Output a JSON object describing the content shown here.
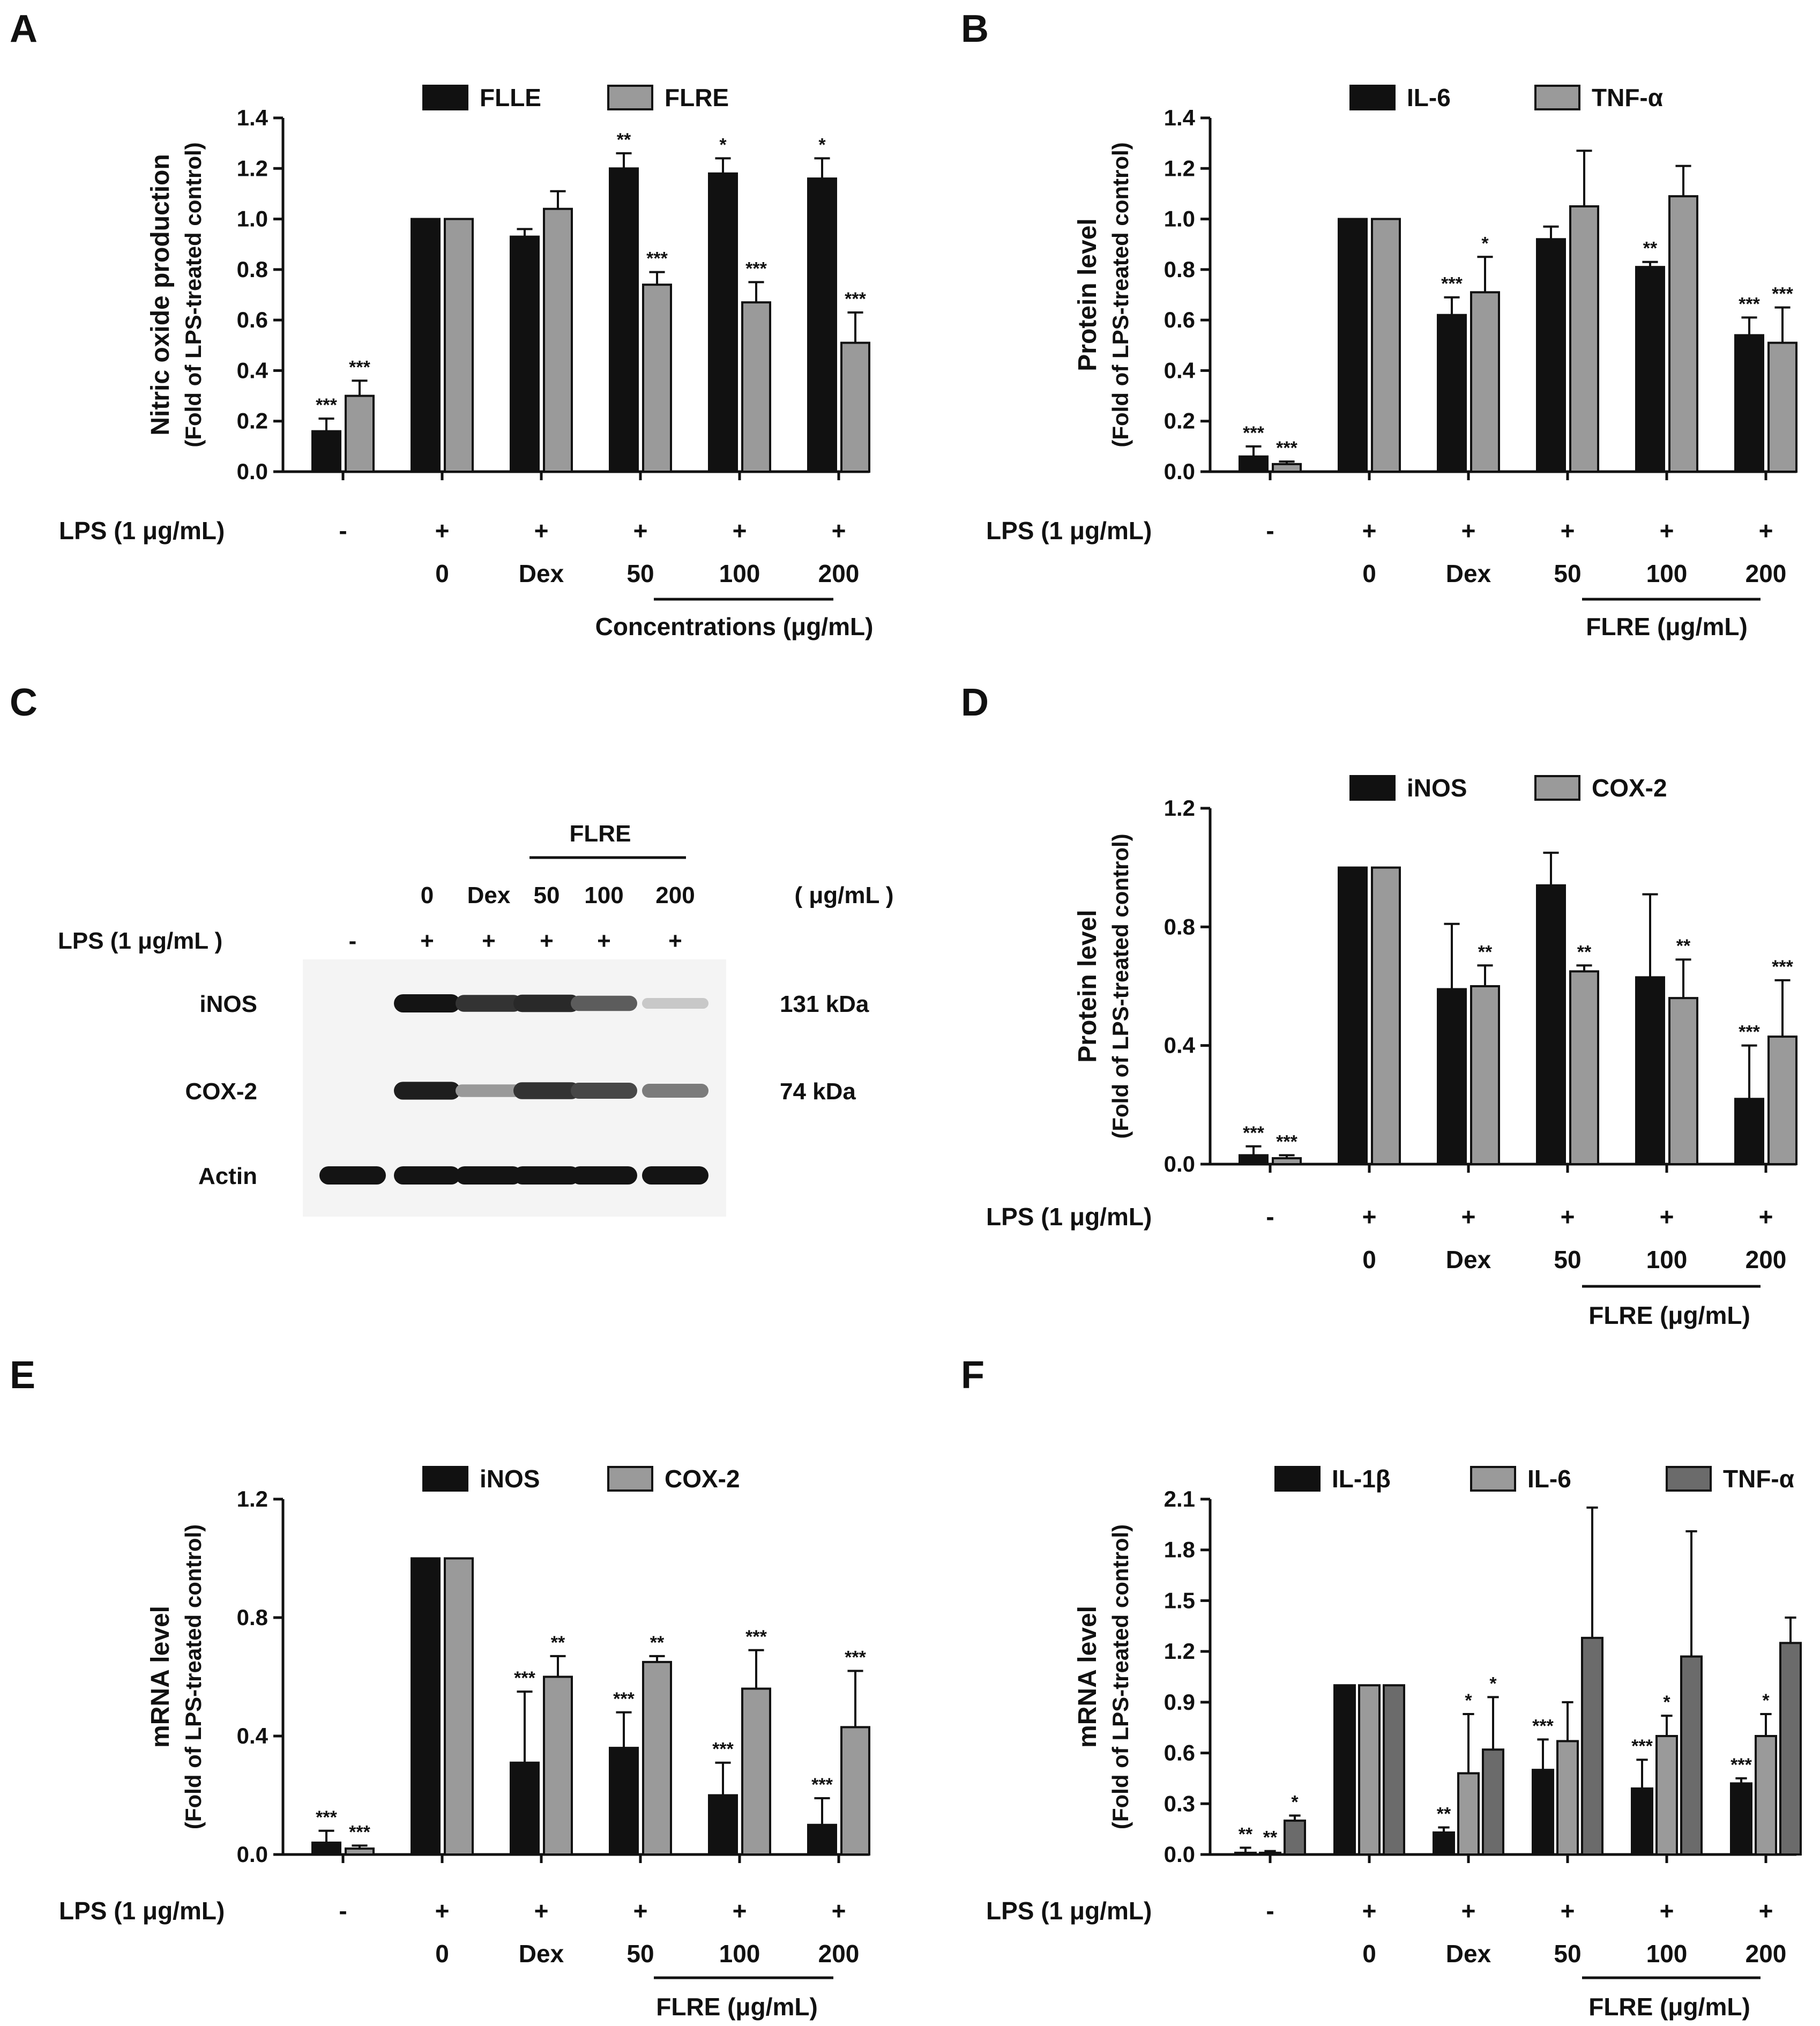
{
  "colors": {
    "black": "#111111",
    "light_gray": "#9a9a9a",
    "dark_gray": "#6b6b6b",
    "blot_bg": "#f4f4f4"
  },
  "panels": {
    "A": {
      "letter": "A"
    },
    "B": {
      "letter": "B"
    },
    "C": {
      "letter": "C"
    },
    "D": {
      "letter": "D"
    },
    "E": {
      "letter": "E"
    },
    "F": {
      "letter": "F"
    }
  },
  "chart_data": [
    {
      "id": "A",
      "type": "bar",
      "title": "",
      "ylabel": "Nitric oxide production",
      "ylabel_sub": "(Fold of LPS-treated control)",
      "ylim": [
        0,
        1.4
      ],
      "yticks": [
        "0.0",
        "0.2",
        "0.4",
        "0.6",
        "0.8",
        "1.0",
        "1.2",
        "1.4"
      ],
      "legend": [
        "FLLE",
        "FLRE"
      ],
      "lps_label": "LPS (1 μg/mL)",
      "lps_values": [
        "-",
        "+",
        "+",
        "+",
        "+",
        "+"
      ],
      "categories": [
        "",
        "0",
        "Dex",
        "50",
        "100",
        "200"
      ],
      "group_label": "Concentrations (μg/mL)",
      "series": [
        {
          "name": "FLLE",
          "values": [
            0.16,
            1.0,
            0.93,
            1.2,
            1.18,
            1.16
          ],
          "errors": [
            0.05,
            0,
            0.03,
            0.06,
            0.06,
            0.08
          ],
          "sig": [
            "***",
            "",
            "",
            "**",
            "*",
            "*"
          ]
        },
        {
          "name": "FLRE",
          "values": [
            0.3,
            1.0,
            1.04,
            0.74,
            0.67,
            0.51
          ],
          "errors": [
            0.06,
            0,
            0.07,
            0.05,
            0.08,
            0.12
          ],
          "sig": [
            "***",
            "",
            "",
            "***",
            "***",
            "***"
          ]
        }
      ]
    },
    {
      "id": "B",
      "type": "bar",
      "title": "",
      "ylabel": "Protein level",
      "ylabel_sub": "(Fold of LPS-treated control)",
      "ylim": [
        0,
        1.4
      ],
      "yticks": [
        "0.0",
        "0.2",
        "0.4",
        "0.6",
        "0.8",
        "1.0",
        "1.2",
        "1.4"
      ],
      "legend": [
        "IL-6",
        "TNF-α"
      ],
      "lps_label": "LPS (1 μg/mL)",
      "lps_values": [
        "-",
        "+",
        "+",
        "+",
        "+",
        "+"
      ],
      "categories": [
        "",
        "0",
        "Dex",
        "50",
        "100",
        "200"
      ],
      "group_label": "FLRE (μg/mL)",
      "series": [
        {
          "name": "IL-6",
          "values": [
            0.06,
            1.0,
            0.62,
            0.92,
            0.81,
            0.54
          ],
          "errors": [
            0.04,
            0,
            0.07,
            0.05,
            0.02,
            0.07
          ],
          "sig": [
            "***",
            "",
            "***",
            "",
            "**",
            "***"
          ]
        },
        {
          "name": "TNF-α",
          "values": [
            0.03,
            1.0,
            0.71,
            1.05,
            1.09,
            0.51
          ],
          "errors": [
            0.01,
            0,
            0.14,
            0.22,
            0.12,
            0.14
          ],
          "sig": [
            "***",
            "",
            "*",
            "",
            "",
            "***"
          ]
        }
      ]
    },
    {
      "id": "D",
      "type": "bar",
      "title": "",
      "ylabel": "Protein level",
      "ylabel_sub": "(Fold of LPS-treated control)",
      "ylim": [
        0,
        1.2
      ],
      "yticks": [
        "0.0",
        "0.4",
        "0.8",
        "1.2"
      ],
      "legend": [
        "iNOS",
        "COX-2"
      ],
      "lps_label": "LPS (1 μg/mL)",
      "lps_values": [
        "-",
        "+",
        "+",
        "+",
        "+",
        "+"
      ],
      "categories": [
        "",
        "0",
        "Dex",
        "50",
        "100",
        "200"
      ],
      "group_label": "FLRE (μg/mL)",
      "series": [
        {
          "name": "iNOS",
          "values": [
            0.03,
            1.0,
            0.59,
            0.94,
            0.63,
            0.22
          ],
          "errors": [
            0.03,
            0,
            0.22,
            0.11,
            0.28,
            0.18
          ],
          "sig": [
            "***",
            "",
            "",
            "",
            "",
            "***"
          ]
        },
        {
          "name": "COX-2",
          "values": [
            0.02,
            1.0,
            0.6,
            0.65,
            0.56,
            0.43
          ],
          "errors": [
            0.01,
            0,
            0.07,
            0.02,
            0.13,
            0.19
          ],
          "sig": [
            "***",
            "",
            "**",
            "**",
            "**",
            "***"
          ]
        }
      ]
    },
    {
      "id": "E",
      "type": "bar",
      "title": "",
      "ylabel": "mRNA level",
      "ylabel_sub": "(Fold of LPS-treated control)",
      "ylim": [
        0,
        1.2
      ],
      "yticks": [
        "0.0",
        "0.4",
        "0.8",
        "1.2"
      ],
      "legend": [
        "iNOS",
        "COX-2"
      ],
      "lps_label": "LPS (1 μg/mL)",
      "lps_values": [
        "-",
        "+",
        "+",
        "+",
        "+",
        "+"
      ],
      "categories": [
        "",
        "0",
        "Dex",
        "50",
        "100",
        "200"
      ],
      "group_label": "FLRE (μg/mL)",
      "series": [
        {
          "name": "iNOS",
          "values": [
            0.04,
            1.0,
            0.31,
            0.36,
            0.2,
            0.1
          ],
          "errors": [
            0.04,
            0,
            0.24,
            0.12,
            0.11,
            0.09
          ],
          "sig": [
            "***",
            "",
            "***",
            "***",
            "***",
            "***"
          ]
        },
        {
          "name": "COX-2",
          "values": [
            0.02,
            1.0,
            0.6,
            0.65,
            0.56,
            0.43
          ],
          "errors": [
            0.01,
            0,
            0.07,
            0.02,
            0.13,
            0.19
          ],
          "sig": [
            "***",
            "",
            "**",
            "**",
            "***",
            "***"
          ]
        }
      ]
    },
    {
      "id": "F",
      "type": "bar",
      "title": "",
      "ylabel": "mRNA level",
      "ylabel_sub": "(Fold of LPS-treated control)",
      "ylim": [
        0,
        2.1
      ],
      "yticks": [
        "0.0",
        "0.3",
        "0.6",
        "0.9",
        "1.2",
        "1.5",
        "1.8",
        "2.1"
      ],
      "legend": [
        "IL-1β",
        "IL-6",
        "TNF-α"
      ],
      "lps_label": "LPS (1 μg/mL)",
      "lps_values": [
        "-",
        "+",
        "+",
        "+",
        "+",
        "+"
      ],
      "categories": [
        "",
        "0",
        "Dex",
        "50",
        "100",
        "200"
      ],
      "group_label": "FLRE (μg/mL)",
      "series": [
        {
          "name": "IL-1β",
          "values": [
            0.01,
            1.0,
            0.13,
            0.5,
            0.39,
            0.42
          ],
          "errors": [
            0.03,
            0,
            0.03,
            0.18,
            0.17,
            0.03
          ],
          "sig": [
            "**",
            "",
            "**",
            "***",
            "***",
            "***"
          ]
        },
        {
          "name": "IL-6",
          "values": [
            0.01,
            1.0,
            0.48,
            0.67,
            0.7,
            0.7
          ],
          "errors": [
            0.01,
            0,
            0.35,
            0.23,
            0.12,
            0.13
          ],
          "sig": [
            "**",
            "",
            "*",
            "",
            "*",
            "*"
          ]
        },
        {
          "name": "TNF-α",
          "values": [
            0.2,
            1.0,
            0.62,
            1.28,
            1.17,
            1.25
          ],
          "errors": [
            0.03,
            0,
            0.31,
            0.77,
            0.74,
            0.15
          ],
          "sig": [
            "*",
            "",
            "*",
            "",
            "",
            ""
          ]
        }
      ]
    }
  ],
  "blot": {
    "group_label": "FLRE",
    "conc_labels": [
      "0",
      "Dex",
      "50",
      "100",
      "200"
    ],
    "unit_label": "( μg/mL )",
    "lps_label": "LPS (1 μg/mL )",
    "lps_values": [
      "-",
      "+",
      "+",
      "+",
      "+",
      "+"
    ],
    "rows": [
      {
        "name": "iNOS",
        "kda": "131 kDa",
        "intensity": [
          0,
          1.0,
          0.85,
          0.9,
          0.65,
          0.12
        ]
      },
      {
        "name": "COX-2",
        "kda": "74 kDa",
        "intensity": [
          0,
          0.95,
          0.35,
          0.85,
          0.75,
          0.5
        ]
      },
      {
        "name": "Actin",
        "kda": "",
        "intensity": [
          1.0,
          1.0,
          1.0,
          1.0,
          1.0,
          1.0
        ]
      }
    ]
  }
}
